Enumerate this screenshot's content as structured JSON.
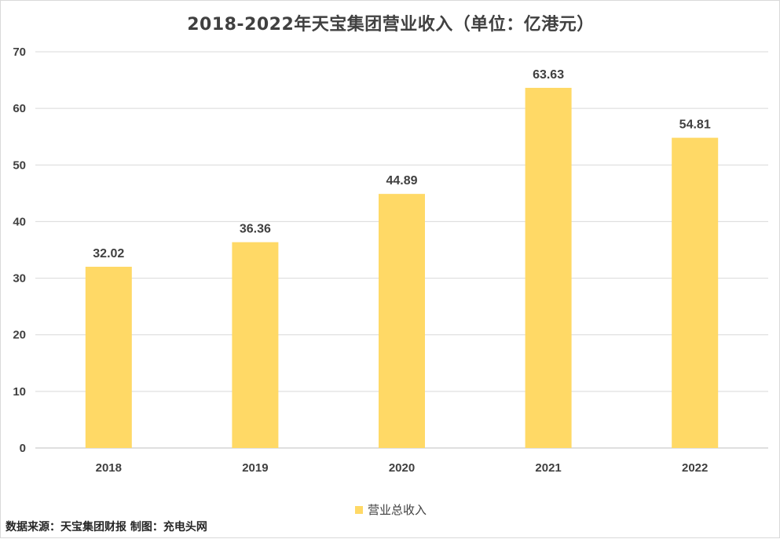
{
  "chart_data": {
    "type": "bar",
    "title": "2018-2022年天宝集团营业收入（单位：亿港元）",
    "categories": [
      "2018",
      "2019",
      "2020",
      "2021",
      "2022"
    ],
    "series": [
      {
        "name": "营业总收入",
        "values": [
          32.02,
          36.36,
          44.89,
          63.63,
          54.81
        ],
        "color": "#ffd966"
      }
    ],
    "ylim": [
      0,
      70
    ],
    "yticks": [
      0,
      10,
      20,
      30,
      40,
      50,
      60,
      70
    ],
    "grid": true,
    "legend": "bottom-center",
    "data_labels": [
      "32.02",
      "36.36",
      "44.89",
      "63.63",
      "54.81"
    ]
  },
  "footer": {
    "source_note": "数据来源：天宝集团财报  制图：充电头网"
  }
}
